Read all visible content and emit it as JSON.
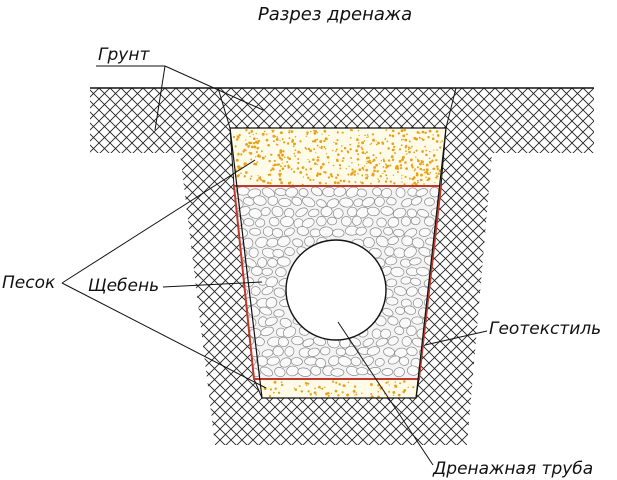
{
  "title": "Разрез дренажа",
  "labels": {
    "soil": "Грунт",
    "sand": "Песок",
    "gravel": "Щебень",
    "geotextile": "Геотекстиль",
    "pipe": "Дренажная труба"
  },
  "colors": {
    "line": "#111111",
    "hatch": "#222222",
    "sand_dots": "#e8a21a",
    "sand_bg": "#fffbe9",
    "gravel_stroke": "#8a8a8a",
    "gravel_bg": "#f3f3f3",
    "geotextile": "#c0392b",
    "pipe_fill": "#ffffff"
  }
}
